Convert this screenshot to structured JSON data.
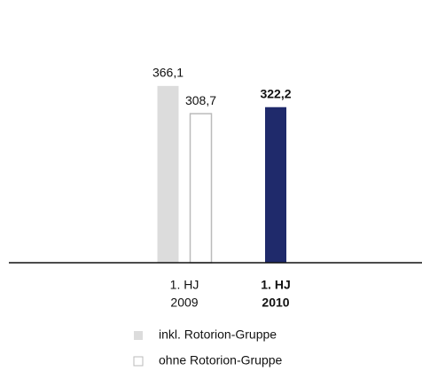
{
  "chart_data": {
    "type": "bar",
    "categories": [
      [
        "1. HJ",
        "2009"
      ],
      [
        "1. HJ",
        "2010"
      ]
    ],
    "series": [
      {
        "name": "inkl. Rotorion-Gruppe",
        "color": "#dcdcdc",
        "point_colors": [
          "#dcdcdc",
          "#1f2a6b"
        ],
        "values": [
          366.1,
          322.2
        ],
        "value_labels": [
          "366,1",
          "322,2"
        ]
      },
      {
        "name": "ohne Rotorion-Gruppe",
        "color": "#ffffff",
        "stroke": "#bbbbbb",
        "values": [
          308.7,
          null
        ],
        "value_labels": [
          "308,7",
          null
        ]
      }
    ],
    "ylim": [
      0,
      500
    ]
  }
}
